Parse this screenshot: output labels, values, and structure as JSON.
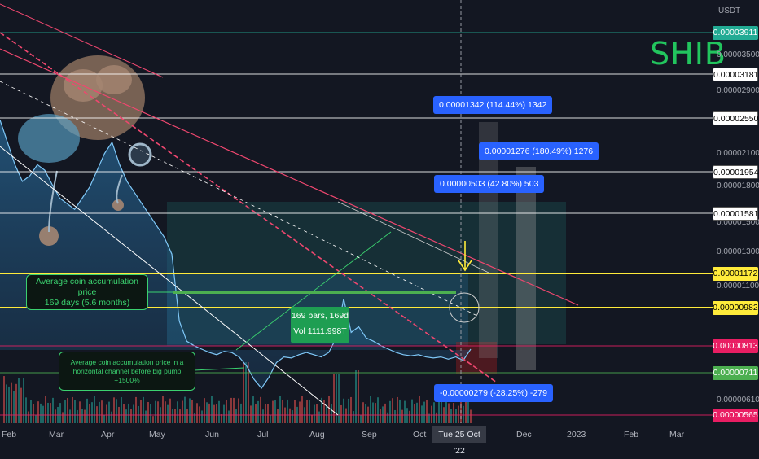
{
  "symbol": "SHIB",
  "chart_data": {
    "type": "line",
    "currency": "USDT",
    "x_ticks": [
      "Feb",
      "Mar",
      "Apr",
      "May",
      "Jun",
      "Jul",
      "Aug",
      "Sep",
      "Oct",
      "Dec",
      "2023",
      "Feb",
      "Mar"
    ],
    "crosshair_date": "Tue 25 Oct '22",
    "y_scale_labels": [
      "0.00003500",
      "0.00002900",
      "0.00002100",
      "0.00001800",
      "0.00001500",
      "0.00001300",
      "0.00001100",
      "0.00000610"
    ],
    "y_range": [
      5.6e-06,
      4.2e-05
    ],
    "price_series": [
      3.2e-05,
      3e-05,
      2.8e-05,
      2.65e-05,
      2.7e-05,
      2.8e-05,
      2.75e-05,
      2.62e-05,
      2.5e-05,
      2.45e-05,
      2.4e-05,
      2.5e-05,
      2.6e-05,
      2.75e-05,
      2.9e-05,
      3e-05,
      2.8e-05,
      2.65e-05,
      2.55e-05,
      2.45e-05,
      2.35e-05,
      2.25e-05,
      2.15e-05,
      2e-05,
      1.4e-05,
      1.22e-05,
      1.18e-05,
      1.15e-05,
      1.12e-05,
      1.1e-05,
      1.13e-05,
      1.12e-05,
      1.08e-05,
      1e-05,
      8.8e-06,
      8e-06,
      9e-06,
      1.03e-05,
      1.08e-05,
      1.07e-05,
      1.1e-05,
      1.12e-05,
      1.1e-05,
      1.08e-05,
      1.12e-05,
      1.25e-05,
      1.6e-05,
      1.3e-05,
      1.35e-05,
      1.25e-05,
      1.22e-05,
      1.18e-05,
      1.15e-05,
      1.12e-05,
      1.1e-05,
      1.09e-05,
      1.1e-05,
      1.08e-05,
      1.07e-05,
      1.08e-05,
      1.06e-05,
      1.08e-05,
      1.05e-05,
      1.15e-05
    ],
    "price_levels": [
      {
        "value": "0.00003911",
        "color": "#22ab94"
      },
      {
        "value": "0.00003181",
        "color": "#ffffff"
      },
      {
        "value": "0.00002550",
        "color": "#ffffff"
      },
      {
        "value": "0.00001954",
        "color": "#ffffff"
      },
      {
        "value": "0.00001581",
        "color": "#ffffff"
      },
      {
        "value": "0.00001172",
        "color": "#ffeb3b"
      },
      {
        "value": "0.00000982",
        "color": "#ffeb3b"
      },
      {
        "value": "0.00000813",
        "color": "#e91e63"
      },
      {
        "value": "0.00000711",
        "color": "#4caf50"
      },
      {
        "value": "0.00000565",
        "color": "#e91e63"
      }
    ],
    "measurements": [
      "0.00001342 (114.44%) 1342",
      "0.00001276 (180.49%) 1276",
      "0.00000503 (42.80%) 503",
      "-0.00000279 (-28.25%) -279"
    ],
    "range_box": {
      "bars": "169 bars, 169d",
      "volume": "Vol 1111.998T"
    },
    "annotations": [
      "Average coin accumulation price\n169 days (5.6 months)",
      "Average coin accumulation price in a\nhorizontal channel before big pump +1500%"
    ]
  }
}
